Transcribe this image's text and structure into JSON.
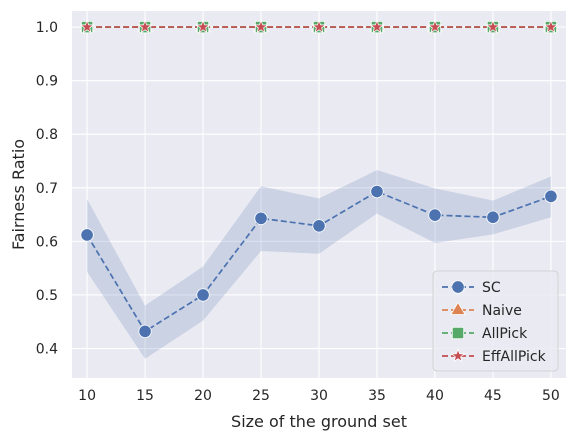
{
  "chart_data": {
    "type": "line",
    "title": "",
    "xlabel": "Size of the ground set",
    "ylabel": "Fairness Ratio",
    "x": [
      10,
      15,
      20,
      25,
      30,
      35,
      40,
      45,
      50
    ],
    "xticks": [
      "10",
      "15",
      "20",
      "25",
      "30",
      "35",
      "40",
      "45",
      "50"
    ],
    "yticks": [
      "0.4",
      "0.5",
      "0.6",
      "0.7",
      "0.8",
      "0.9",
      "1.0"
    ],
    "xlim": [
      8.7,
      51.3
    ],
    "ylim": [
      0.345,
      1.03
    ],
    "grid": true,
    "legend_position": "bottom-right",
    "series": [
      {
        "name": "SC",
        "values": [
          0.612,
          0.432,
          0.5,
          0.643,
          0.629,
          0.693,
          0.649,
          0.645,
          0.684
        ],
        "ci_lower": [
          0.543,
          0.381,
          0.452,
          0.582,
          0.577,
          0.652,
          0.597,
          0.613,
          0.645
        ],
        "ci_upper": [
          0.679,
          0.48,
          0.553,
          0.703,
          0.68,
          0.733,
          0.699,
          0.676,
          0.721
        ],
        "color": "#4C72B0",
        "marker": "circle"
      },
      {
        "name": "Naive",
        "values": [
          1.0,
          1.0,
          1.0,
          1.0,
          1.0,
          1.0,
          1.0,
          1.0,
          1.0
        ],
        "color": "#DD8452",
        "marker": "triangle"
      },
      {
        "name": "AllPick",
        "values": [
          1.0,
          1.0,
          1.0,
          1.0,
          1.0,
          1.0,
          1.0,
          1.0,
          1.0
        ],
        "color": "#55A868",
        "marker": "square"
      },
      {
        "name": "EffAllPick",
        "values": [
          1.0,
          1.0,
          1.0,
          1.0,
          1.0,
          1.0,
          1.0,
          1.0,
          1.0
        ],
        "color": "#C44E52",
        "marker": "star"
      }
    ],
    "colors": {
      "plot_background": "#EAEAF2",
      "grid": "#FFFFFF"
    }
  }
}
